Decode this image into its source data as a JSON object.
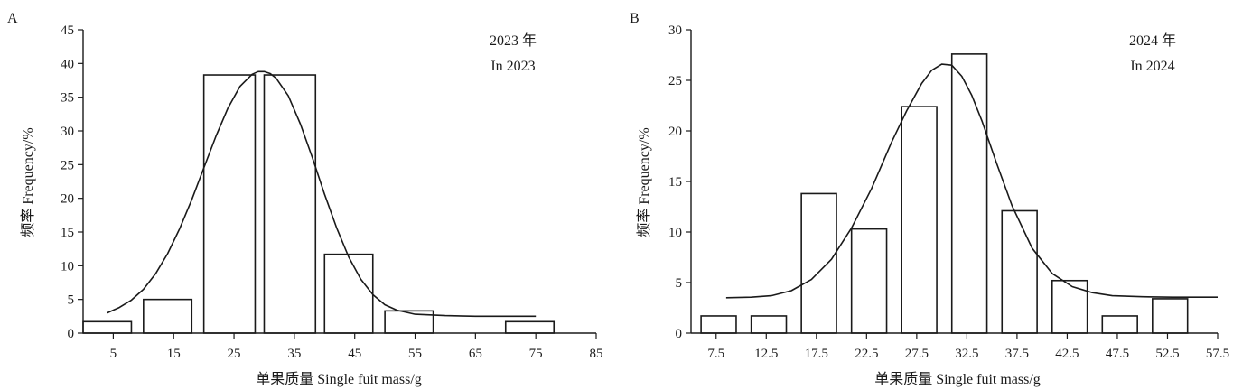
{
  "colors": {
    "ink": "#1a1a1a",
    "bar_fill": "#ffffff"
  },
  "chart_data": [
    {
      "panel_label": "A",
      "type": "bar",
      "annotation": [
        "2023 年",
        "In 2023"
      ],
      "xlabel": "单果质量 Single fuit mass/g",
      "ylabel": "频率 Frequency/%",
      "xlim": [
        0,
        85
      ],
      "x_ticks": [
        5,
        15,
        25,
        35,
        45,
        55,
        65,
        75,
        85
      ],
      "ylim": [
        0,
        45
      ],
      "y_ticks": [
        0,
        5,
        10,
        15,
        20,
        25,
        30,
        35,
        40,
        45
      ],
      "bars": [
        {
          "x0": 0,
          "x1": 8,
          "value": 1.7
        },
        {
          "x0": 10,
          "x1": 18,
          "value": 5.0
        },
        {
          "x0": 20,
          "x1": 28.5,
          "value": 38.3
        },
        {
          "x0": 30,
          "x1": 38.5,
          "value": 38.3
        },
        {
          "x0": 40,
          "x1": 48,
          "value": 11.7
        },
        {
          "x0": 50,
          "x1": 58,
          "value": 3.3
        },
        {
          "x0": 70,
          "x1": 78,
          "value": 1.7
        }
      ],
      "fit_curve": {
        "x": [
          4,
          6,
          8,
          10,
          12,
          14,
          16,
          18,
          20,
          22,
          24,
          26,
          28,
          29,
          30,
          31,
          32,
          34,
          36,
          38,
          40,
          42,
          44,
          46,
          48,
          50,
          52,
          55,
          60,
          65,
          70,
          75
        ],
        "y": [
          3.0,
          3.8,
          4.9,
          6.5,
          8.8,
          11.8,
          15.5,
          19.8,
          24.5,
          29.2,
          33.4,
          36.6,
          38.4,
          38.8,
          38.8,
          38.5,
          37.8,
          35.2,
          31.0,
          26.0,
          20.6,
          15.6,
          11.3,
          8.0,
          5.7,
          4.2,
          3.4,
          2.8,
          2.6,
          2.5,
          2.5,
          2.5
        ]
      }
    },
    {
      "panel_label": "B",
      "type": "bar",
      "annotation": [
        "2024 年",
        "In 2024"
      ],
      "xlabel": "单果质量 Single fuit mass/g",
      "ylabel": "频率 Frequency/%",
      "xlim": [
        5,
        57.5
      ],
      "x_ticks": [
        7.5,
        12.5,
        17.5,
        22.5,
        27.5,
        32.5,
        37.5,
        42.5,
        47.5,
        52.5,
        57.5
      ],
      "ylim": [
        0,
        30
      ],
      "y_ticks": [
        0,
        5,
        10,
        15,
        20,
        25,
        30
      ],
      "bars": [
        {
          "x0": 6,
          "x1": 9.5,
          "value": 1.7
        },
        {
          "x0": 11,
          "x1": 14.5,
          "value": 1.7
        },
        {
          "x0": 16,
          "x1": 19.5,
          "value": 13.8
        },
        {
          "x0": 21,
          "x1": 24.5,
          "value": 10.3
        },
        {
          "x0": 26,
          "x1": 29.5,
          "value": 22.4
        },
        {
          "x0": 31,
          "x1": 34.5,
          "value": 27.6
        },
        {
          "x0": 36,
          "x1": 39.5,
          "value": 12.1
        },
        {
          "x0": 41,
          "x1": 44.5,
          "value": 5.2
        },
        {
          "x0": 46,
          "x1": 49.5,
          "value": 1.7
        },
        {
          "x0": 51,
          "x1": 54.5,
          "value": 3.4
        }
      ],
      "fit_curve": {
        "x": [
          8.5,
          11,
          13,
          15,
          17,
          19,
          21,
          23,
          25,
          26.5,
          28,
          29,
          30,
          31,
          32,
          33,
          34,
          35.5,
          37,
          39,
          41,
          43,
          45,
          47,
          50,
          53,
          57.5
        ],
        "y": [
          3.5,
          3.55,
          3.7,
          4.2,
          5.3,
          7.3,
          10.4,
          14.3,
          18.9,
          22.0,
          24.7,
          26.0,
          26.6,
          26.5,
          25.4,
          23.5,
          21.0,
          16.7,
          12.6,
          8.4,
          5.9,
          4.6,
          4.0,
          3.7,
          3.6,
          3.55,
          3.55
        ]
      }
    }
  ]
}
